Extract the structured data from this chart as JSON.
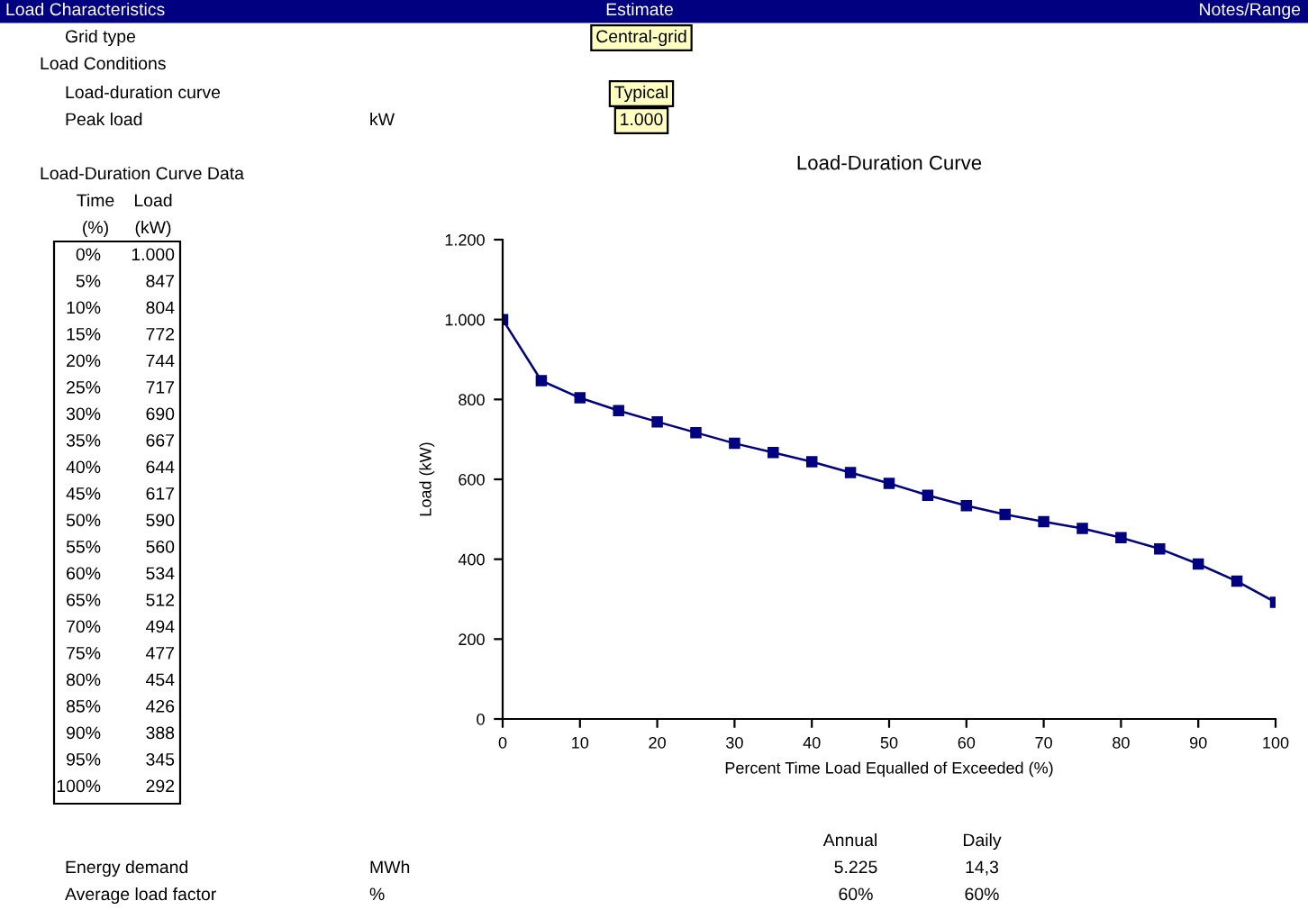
{
  "chart_data": {
    "type": "line",
    "title": "Load-Duration Curve",
    "xlabel": "Percent Time Load Equalled of Exceeded (%)",
    "ylabel": "Load (kW)",
    "x": [
      0,
      5,
      10,
      15,
      20,
      25,
      30,
      35,
      40,
      45,
      50,
      55,
      60,
      65,
      70,
      75,
      80,
      85,
      90,
      95,
      100
    ],
    "series": [
      {
        "color": "#000080",
        "values": [
          1000,
          847,
          804,
          772,
          744,
          717,
          690,
          667,
          644,
          617,
          590,
          560,
          534,
          512,
          494,
          477,
          454,
          426,
          388,
          345,
          292
        ]
      }
    ],
    "xlim": [
      0,
      100
    ],
    "xticks": [
      0,
      10,
      20,
      30,
      40,
      50,
      60,
      70,
      80,
      90,
      100
    ],
    "ylim": [
      0,
      1200
    ],
    "yticks": [
      0,
      200,
      400,
      600,
      800,
      {
        "value": 1000,
        "label": "1.000"
      },
      {
        "value": 1200,
        "label": "1.200"
      }
    ],
    "marker": "square",
    "line_style": "solid",
    "grid": false,
    "legend": false,
    "annotations": [
      "Load Characteristics",
      "Estimate",
      "Notes/Range",
      "Grid type",
      "Central-grid",
      "Load Conditions",
      "Load-duration curve",
      "Typical",
      "Peak load",
      "kW",
      "1.000",
      "Load-Duration Curve Data",
      "Time",
      "(%)",
      "Load",
      "(kW)",
      "Annual",
      "Daily",
      "Energy demand",
      "MWh",
      "5.225",
      "14,3",
      "Average load factor",
      "%",
      "60%",
      "60%",
      "0%",
      "5%",
      "10%",
      "15%",
      "20%",
      "25%",
      "30%",
      "35%",
      "40%",
      "45%",
      "50%",
      "55%",
      "60%",
      "65%",
      "70%",
      "75%",
      "80%",
      "85%",
      "90%",
      "95%",
      "100%",
      "1.000",
      "847",
      "804",
      "772",
      "744",
      "717",
      "690",
      "667",
      "644",
      "617",
      "590",
      "560",
      "534",
      "512",
      "494",
      "477",
      "454",
      "426",
      "388",
      "345",
      "292"
    ]
  }
}
